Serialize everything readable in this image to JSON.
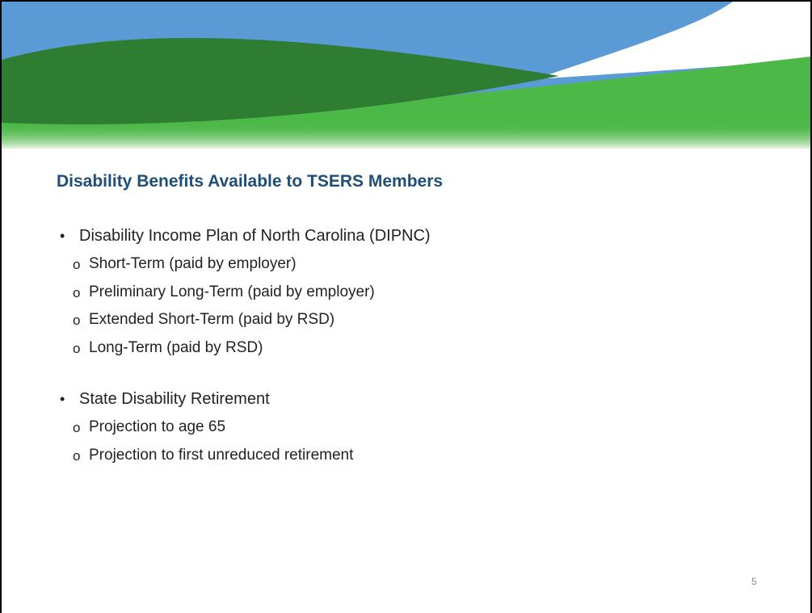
{
  "title": "Disability Benefits Available to TSERS Members",
  "sections": [
    {
      "text": "Disability Income Plan of North Carolina (DIPNC)",
      "items": [
        "Short-Term (paid by employer)",
        "Preliminary Long-Term (paid by employer)",
        "Extended Short-Term (paid by RSD)",
        "Long-Term (paid by RSD)"
      ]
    },
    {
      "text": "State Disability Retirement",
      "items": [
        "Projection to age 65",
        "Projection to first unreduced retirement"
      ]
    }
  ],
  "page_number": "5"
}
